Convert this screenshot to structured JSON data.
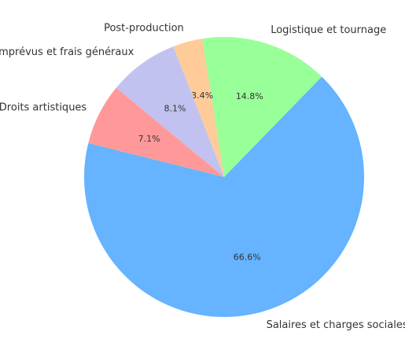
{
  "chart_data": {
    "type": "pie",
    "categories": [
      "Salaires et charges sociales",
      "Logistique et tournage",
      "Post-production",
      "Imprévus et frais généraux",
      "Droits artistiques"
    ],
    "values": [
      66.6,
      14.8,
      3.4,
      8.1,
      7.1
    ],
    "value_labels": [
      "66.6%",
      "14.8%",
      "3.4%",
      "8.1%",
      "7.1%"
    ],
    "colors": [
      "#66b3ff",
      "#99ff99",
      "#ffcc99",
      "#c2c2f0",
      "#ff9999"
    ]
  }
}
